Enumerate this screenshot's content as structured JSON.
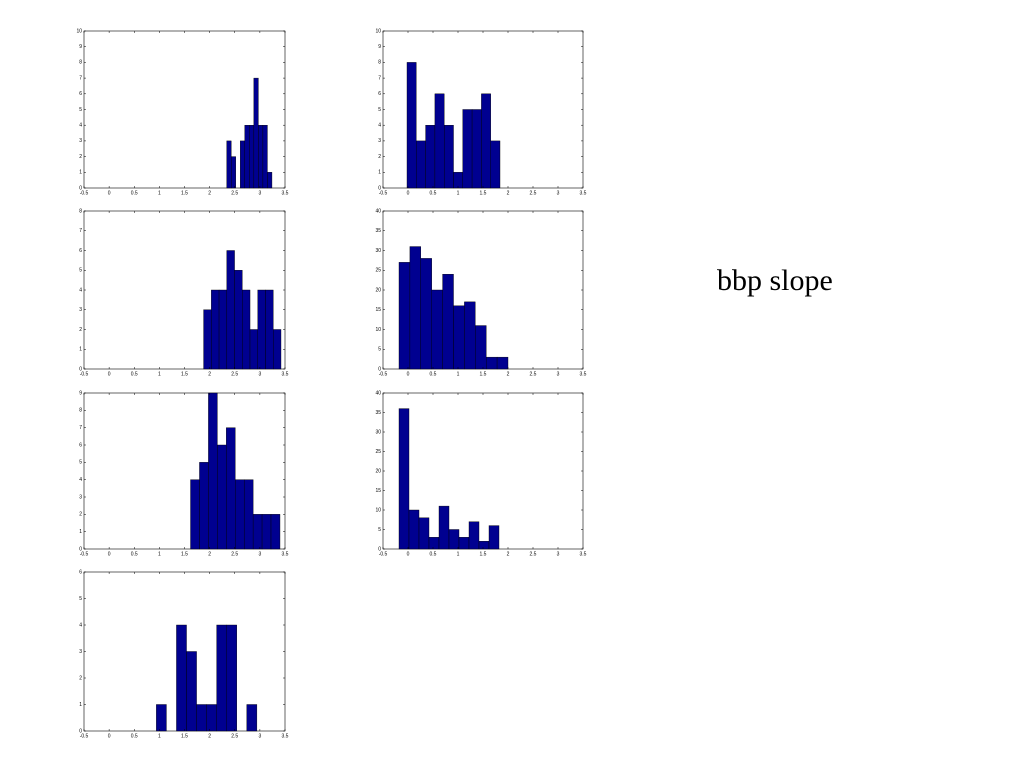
{
  "chart_data": [
    {
      "type": "histogram",
      "bins": [
        2.34,
        2.43,
        2.52,
        2.61,
        2.7,
        2.79,
        2.88,
        2.97,
        3.06,
        3.15,
        3.24
      ],
      "counts": [
        3,
        2,
        0,
        3,
        4,
        4,
        7,
        4,
        4,
        1
      ],
      "color": "#000090",
      "xlim": [
        -0.5,
        3.5
      ],
      "xticks": [
        -0.5,
        0,
        0.5,
        1,
        1.5,
        2,
        2.5,
        3,
        3.5
      ],
      "ylim": [
        0,
        10
      ],
      "yticks": [
        0,
        1,
        2,
        3,
        4,
        5,
        6,
        7,
        8,
        9,
        10
      ]
    },
    {
      "type": "histogram",
      "bins": [
        -0.02,
        0.166,
        0.352,
        0.538,
        0.724,
        0.91,
        1.096,
        1.282,
        1.468,
        1.654,
        1.84
      ],
      "counts": [
        8,
        3,
        4,
        6,
        4,
        1,
        5,
        5,
        6,
        3
      ],
      "color": "#000090",
      "xlim": [
        -0.5,
        3.5
      ],
      "xticks": [
        -0.5,
        0,
        0.5,
        1,
        1.5,
        2,
        2.5,
        3,
        3.5
      ],
      "ylim": [
        0,
        10
      ],
      "yticks": [
        0,
        1,
        2,
        3,
        4,
        5,
        6,
        7,
        8,
        9,
        10
      ]
    },
    {
      "type": "histogram",
      "bins": [
        1.88,
        2.034,
        2.188,
        2.342,
        2.496,
        2.65,
        2.804,
        2.958,
        3.112,
        3.266,
        3.42
      ],
      "counts": [
        3,
        4,
        4,
        6,
        5,
        4,
        2,
        4,
        4,
        2
      ],
      "color": "#000090",
      "xlim": [
        -0.5,
        3.5
      ],
      "xticks": [
        -0.5,
        0,
        0.5,
        1,
        1.5,
        2,
        2.5,
        3,
        3.5
      ],
      "ylim": [
        0,
        8
      ],
      "yticks": [
        0,
        1,
        2,
        3,
        4,
        5,
        6,
        7,
        8
      ]
    },
    {
      "type": "histogram",
      "bins": [
        -0.18,
        0.038,
        0.256,
        0.474,
        0.692,
        0.91,
        1.128,
        1.346,
        1.564,
        1.782,
        2.0
      ],
      "counts": [
        27,
        31,
        28,
        20,
        24,
        16,
        17,
        11,
        3,
        3
      ],
      "color": "#000090",
      "xlim": [
        -0.5,
        3.5
      ],
      "xticks": [
        -0.5,
        0,
        0.5,
        1,
        1.5,
        2,
        2.5,
        3,
        3.5
      ],
      "ylim": [
        0,
        40
      ],
      "yticks": [
        0,
        5,
        10,
        15,
        20,
        25,
        30,
        35,
        40
      ]
    },
    {
      "type": "histogram",
      "bins": [
        1.62,
        1.798,
        1.976,
        2.154,
        2.332,
        2.51,
        2.688,
        2.866,
        3.044,
        3.222,
        3.4
      ],
      "counts": [
        4,
        5,
        9,
        6,
        7,
        4,
        4,
        2,
        2,
        2
      ],
      "color": "#000090",
      "xlim": [
        -0.5,
        3.5
      ],
      "xticks": [
        -0.5,
        0,
        0.5,
        1,
        1.5,
        2,
        2.5,
        3,
        3.5
      ],
      "ylim": [
        0,
        9
      ],
      "yticks": [
        0,
        1,
        2,
        3,
        4,
        5,
        6,
        7,
        8,
        9
      ]
    },
    {
      "type": "histogram",
      "bins": [
        -0.18,
        0.02,
        0.22,
        0.42,
        0.62,
        0.82,
        1.02,
        1.22,
        1.42,
        1.62,
        1.82
      ],
      "counts": [
        36,
        10,
        8,
        3,
        11,
        5,
        3,
        7,
        2,
        6
      ],
      "color": "#000090",
      "xlim": [
        -0.5,
        3.5
      ],
      "xticks": [
        -0.5,
        0,
        0.5,
        1,
        1.5,
        2,
        2.5,
        3,
        3.5
      ],
      "ylim": [
        0,
        40
      ],
      "yticks": [
        0,
        5,
        10,
        15,
        20,
        25,
        30,
        35,
        40
      ]
    },
    {
      "type": "histogram",
      "bins": [
        0.94,
        1.14,
        1.34,
        1.54,
        1.74,
        1.94,
        2.14,
        2.34,
        2.54,
        2.74,
        2.94
      ],
      "counts": [
        1,
        0,
        4,
        3,
        1,
        1,
        4,
        4,
        0,
        1
      ],
      "color": "#000090",
      "xlim": [
        -0.5,
        3.5
      ],
      "xticks": [
        -0.5,
        0,
        0.5,
        1,
        1.5,
        2,
        2.5,
        3,
        3.5
      ],
      "ylim": [
        0,
        6
      ],
      "yticks": [
        0,
        1,
        2,
        3,
        4,
        5,
        6
      ]
    }
  ],
  "annotation": "bbp slope"
}
